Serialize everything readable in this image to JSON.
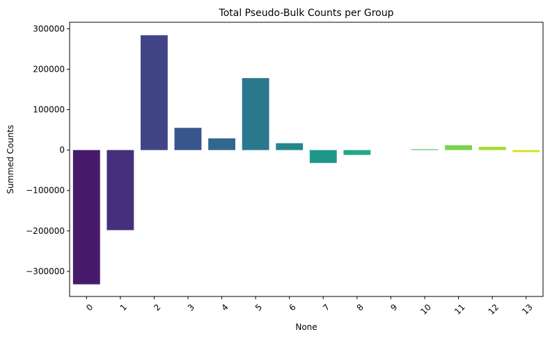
{
  "chart_data": {
    "type": "bar",
    "title": "Total Pseudo-Bulk Counts per Group",
    "xlabel": "None",
    "ylabel": "Summed Counts",
    "categories": [
      "0",
      "1",
      "2",
      "3",
      "4",
      "5",
      "6",
      "7",
      "8",
      "9",
      "10",
      "11",
      "12",
      "13"
    ],
    "values": [
      -332000,
      -198000,
      284000,
      55000,
      29000,
      178000,
      17000,
      -32000,
      -12000,
      0,
      2000,
      12000,
      8000,
      -5000
    ],
    "ylim": [
      -362000,
      316000
    ],
    "yticks": [
      -300000,
      -200000,
      -100000,
      0,
      100000,
      200000,
      300000
    ],
    "ytick_labels": [
      "−300000",
      "−200000",
      "−100000",
      "0",
      "100000",
      "200000",
      "300000"
    ],
    "x_tick_rotation_deg": -45,
    "grid": false,
    "colors": [
      "#481a6c",
      "#472f7d",
      "#414487",
      "#39568c",
      "#31688e",
      "#2a788e",
      "#23888e",
      "#1f988b",
      "#22a884",
      "#35b779",
      "#54c568",
      "#7ad151",
      "#a5db36",
      "#d2e21b"
    ]
  }
}
